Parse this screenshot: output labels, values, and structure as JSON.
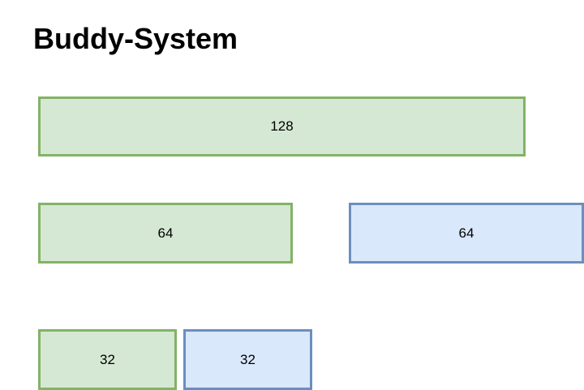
{
  "title": "Buddy-System",
  "blocks": {
    "level_0": {
      "label": "128",
      "state": "green"
    },
    "level_1_left": {
      "label": "64",
      "state": "green"
    },
    "level_1_right": {
      "label": "64",
      "state": "blue"
    },
    "level_2_left": {
      "label": "32",
      "state": "green"
    },
    "level_2_right": {
      "label": "32",
      "state": "blue"
    }
  },
  "colors": {
    "green_fill": "#d5e8d4",
    "green_border": "#82b366",
    "blue_fill": "#dae8fc",
    "blue_border": "#6c8ebf"
  }
}
